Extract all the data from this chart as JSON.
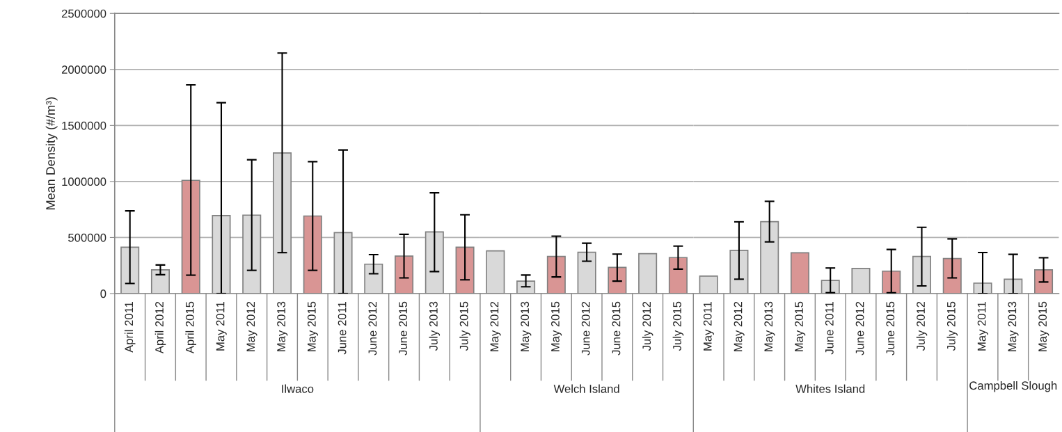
{
  "chart_data": [
    {
      "type": "bar",
      "xlabel": "Ilwaco",
      "ylabel": "Mean Density (#/m³)",
      "categories": [
        "April 2011",
        "April 2012",
        "April 2015",
        "May 2011",
        "May 2012",
        "May 2013",
        "May 2015",
        "June 2011",
        "June 2012",
        "June 2015",
        "July 2013",
        "July 2015"
      ],
      "values": [
        413000,
        212000,
        1010000,
        696000,
        700000,
        1255000,
        692000,
        544000,
        262000,
        334000,
        550000,
        413000
      ],
      "colors": [
        "#d9d9d9",
        "#d9d9d9",
        "#d99594",
        "#d9d9d9",
        "#d9d9d9",
        "#d9d9d9",
        "#d99594",
        "#d9d9d9",
        "#d9d9d9",
        "#d99594",
        "#d9d9d9",
        "#d99594"
      ],
      "errors": [
        [
          90000,
          738000
        ],
        [
          168000,
          255000
        ],
        [
          164000,
          1862000
        ],
        [
          0,
          1703000
        ],
        [
          207000,
          1194000
        ],
        [
          365000,
          2146000
        ],
        [
          207000,
          1177000
        ],
        [
          0,
          1281000
        ],
        [
          177000,
          347000
        ],
        [
          140000,
          528000
        ],
        [
          196000,
          899000
        ],
        [
          122000,
          703000
        ]
      ],
      "ylim": [
        0,
        2500000
      ],
      "yticks": [
        0,
        500000,
        1000000,
        1500000,
        2000000,
        2500000
      ],
      "grid": "y"
    },
    {
      "type": "bar",
      "xlabel": "Welch Island",
      "categories": [
        "May 2012",
        "May 2013",
        "May 2015",
        "June 2012",
        "June 2015",
        "July 2012",
        "July 2015"
      ],
      "values": [
        381000,
        111000,
        331000,
        368000,
        233000,
        356000,
        321000
      ],
      "colors": [
        "#d9d9d9",
        "#d9d9d9",
        "#d99594",
        "#d9d9d9",
        "#d99594",
        "#d9d9d9",
        "#d99594"
      ],
      "errors": [
        null,
        [
          60000,
          165000
        ],
        [
          148000,
          512000
        ],
        [
          288000,
          449000
        ],
        [
          111000,
          352000
        ],
        null,
        [
          218000,
          424000
        ]
      ],
      "ylim": [
        0,
        2500000
      ],
      "yticks": [
        0,
        500000,
        1000000,
        1500000,
        2000000,
        2500000
      ],
      "grid": "y",
      "tick_labels": "x"
    },
    {
      "type": "bar",
      "xlabel": "Whites Island",
      "categories": [
        "May 2011",
        "May 2012",
        "May 2013",
        "May 2015",
        "June 2011",
        "June 2012",
        "June 2015",
        "July 2012",
        "July 2015"
      ],
      "values": [
        156000,
        385000,
        642000,
        364000,
        117000,
        224000,
        200000,
        331000,
        313000
      ],
      "colors": [
        "#d9d9d9",
        "#d9d9d9",
        "#d9d9d9",
        "#d99594",
        "#d9d9d9",
        "#d9d9d9",
        "#d99594",
        "#d9d9d9",
        "#d99594"
      ],
      "errors": [
        null,
        [
          128000,
          640000
        ],
        [
          461000,
          823000
        ],
        null,
        [
          8000,
          228000
        ],
        null,
        [
          8000,
          393000
        ],
        [
          68000,
          591000
        ],
        [
          140000,
          488000
        ]
      ],
      "ylim": [
        0,
        2500000
      ],
      "yticks": [
        0,
        500000,
        1000000,
        1500000,
        2000000,
        2500000
      ],
      "grid": "y",
      "tick_labels": "x"
    },
    {
      "type": "bar",
      "xlabel": "Campbell Slough",
      "categories": [
        "May 2011",
        "May 2013",
        "May 2015"
      ],
      "values": [
        93000,
        128000,
        212000
      ],
      "colors": [
        "#d9d9d9",
        "#d9d9d9",
        "#d99594"
      ],
      "errors": [
        [
          0,
          366000
        ],
        [
          0,
          350000
        ],
        [
          103000,
          319000
        ]
      ],
      "ylim": [
        0,
        2500000
      ],
      "yticks": [
        0,
        500000,
        1000000,
        1500000,
        2000000,
        2500000
      ],
      "grid": "y",
      "tick_labels": "x"
    }
  ]
}
